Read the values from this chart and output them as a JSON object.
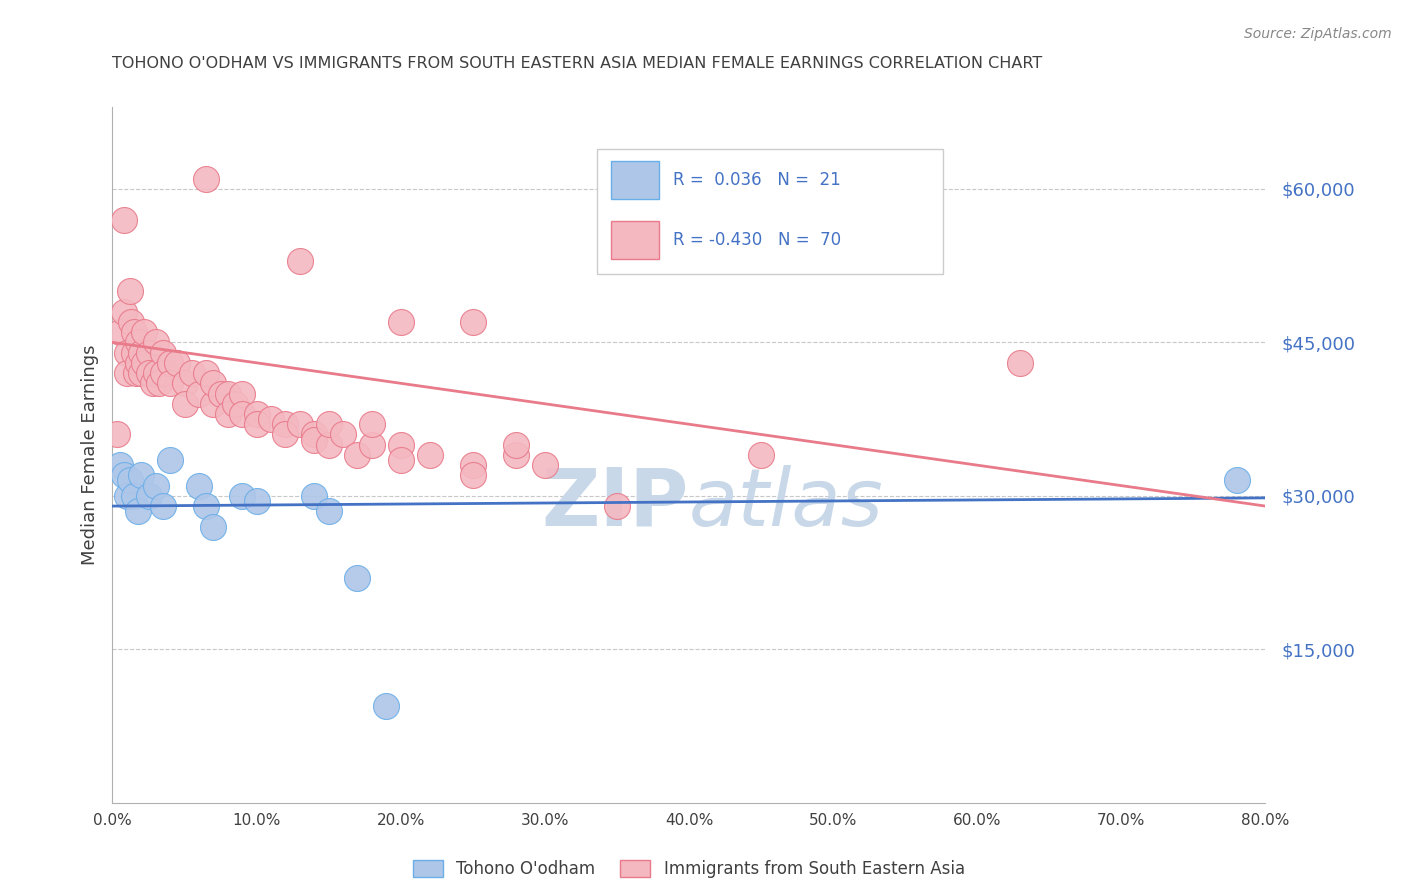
{
  "title": "TOHONO O'ODHAM VS IMMIGRANTS FROM SOUTH EASTERN ASIA MEDIAN FEMALE EARNINGS CORRELATION CHART",
  "source": "Source: ZipAtlas.com",
  "ylabel": "Median Female Earnings",
  "xlabel_ticks": [
    "0.0%",
    "10.0%",
    "20.0%",
    "30.0%",
    "40.0%",
    "50.0%",
    "60.0%",
    "70.0%",
    "80.0%"
  ],
  "ytick_labels": [
    "$15,000",
    "$30,000",
    "$45,000",
    "$60,000"
  ],
  "ytick_values": [
    15000,
    30000,
    45000,
    60000
  ],
  "xlim": [
    0.0,
    0.8
  ],
  "ylim": [
    0,
    68000
  ],
  "legend_entries": [
    {
      "color": "#aec6e8",
      "border": "#5b9bd5",
      "R": "0.036",
      "N": "21"
    },
    {
      "color": "#f4b8c1",
      "border": "#e87a8a",
      "R": "-0.430",
      "N": "70"
    }
  ],
  "legend_text_color": "#4472c4",
  "watermark": "ZIPatlas",
  "watermark_color": "#c8d8e8",
  "blue_scatter": [
    [
      0.005,
      33000
    ],
    [
      0.008,
      32000
    ],
    [
      0.01,
      30000
    ],
    [
      0.012,
      31500
    ],
    [
      0.015,
      30000
    ],
    [
      0.018,
      28500
    ],
    [
      0.02,
      32000
    ],
    [
      0.025,
      30000
    ],
    [
      0.03,
      31000
    ],
    [
      0.035,
      29000
    ],
    [
      0.04,
      33500
    ],
    [
      0.06,
      31000
    ],
    [
      0.065,
      29000
    ],
    [
      0.07,
      27000
    ],
    [
      0.09,
      30000
    ],
    [
      0.1,
      29500
    ],
    [
      0.14,
      30000
    ],
    [
      0.15,
      28500
    ],
    [
      0.17,
      22000
    ],
    [
      0.19,
      9500
    ],
    [
      0.78,
      31500
    ]
  ],
  "pink_scatter": [
    [
      0.003,
      36000
    ],
    [
      0.005,
      46000
    ],
    [
      0.008,
      48000
    ],
    [
      0.008,
      57000
    ],
    [
      0.01,
      44000
    ],
    [
      0.01,
      42000
    ],
    [
      0.012,
      50000
    ],
    [
      0.013,
      47000
    ],
    [
      0.015,
      46000
    ],
    [
      0.015,
      44000
    ],
    [
      0.016,
      42000
    ],
    [
      0.018,
      45000
    ],
    [
      0.018,
      43000
    ],
    [
      0.02,
      44000
    ],
    [
      0.02,
      42000
    ],
    [
      0.022,
      46000
    ],
    [
      0.022,
      43000
    ],
    [
      0.025,
      44000
    ],
    [
      0.025,
      42000
    ],
    [
      0.028,
      41000
    ],
    [
      0.03,
      45000
    ],
    [
      0.03,
      42000
    ],
    [
      0.032,
      41000
    ],
    [
      0.035,
      44000
    ],
    [
      0.035,
      42000
    ],
    [
      0.04,
      43000
    ],
    [
      0.04,
      41000
    ],
    [
      0.045,
      43000
    ],
    [
      0.05,
      41000
    ],
    [
      0.05,
      39000
    ],
    [
      0.055,
      42000
    ],
    [
      0.06,
      40000
    ],
    [
      0.065,
      42000
    ],
    [
      0.065,
      61000
    ],
    [
      0.07,
      39000
    ],
    [
      0.07,
      41000
    ],
    [
      0.075,
      40000
    ],
    [
      0.08,
      40000
    ],
    [
      0.08,
      38000
    ],
    [
      0.085,
      39000
    ],
    [
      0.09,
      40000
    ],
    [
      0.09,
      38000
    ],
    [
      0.1,
      38000
    ],
    [
      0.1,
      37000
    ],
    [
      0.11,
      37500
    ],
    [
      0.12,
      37000
    ],
    [
      0.12,
      36000
    ],
    [
      0.13,
      53000
    ],
    [
      0.13,
      37000
    ],
    [
      0.14,
      36000
    ],
    [
      0.14,
      35500
    ],
    [
      0.15,
      35000
    ],
    [
      0.15,
      37000
    ],
    [
      0.16,
      36000
    ],
    [
      0.17,
      34000
    ],
    [
      0.18,
      35000
    ],
    [
      0.18,
      37000
    ],
    [
      0.2,
      35000
    ],
    [
      0.2,
      47000
    ],
    [
      0.2,
      33500
    ],
    [
      0.22,
      34000
    ],
    [
      0.25,
      33000
    ],
    [
      0.25,
      32000
    ],
    [
      0.25,
      47000
    ],
    [
      0.28,
      34000
    ],
    [
      0.28,
      35000
    ],
    [
      0.3,
      33000
    ],
    [
      0.35,
      29000
    ],
    [
      0.45,
      34000
    ],
    [
      0.63,
      43000
    ]
  ],
  "blue_line_x": [
    0.0,
    0.8
  ],
  "blue_line_y": [
    29000,
    29800
  ],
  "pink_line_x": [
    0.0,
    0.8
  ],
  "pink_line_y": [
    45000,
    29000
  ],
  "blue_color": "#aec6e8",
  "blue_edge": "#6aaee8",
  "pink_color": "#f4b8c1",
  "pink_edge": "#e87a8a",
  "blue_line_color": "#4472c4",
  "pink_line_color": "#e87a8a",
  "grid_color": "#c8c8c8",
  "background_color": "#ffffff",
  "title_color": "#404040",
  "axis_color": "#b0b0b0"
}
